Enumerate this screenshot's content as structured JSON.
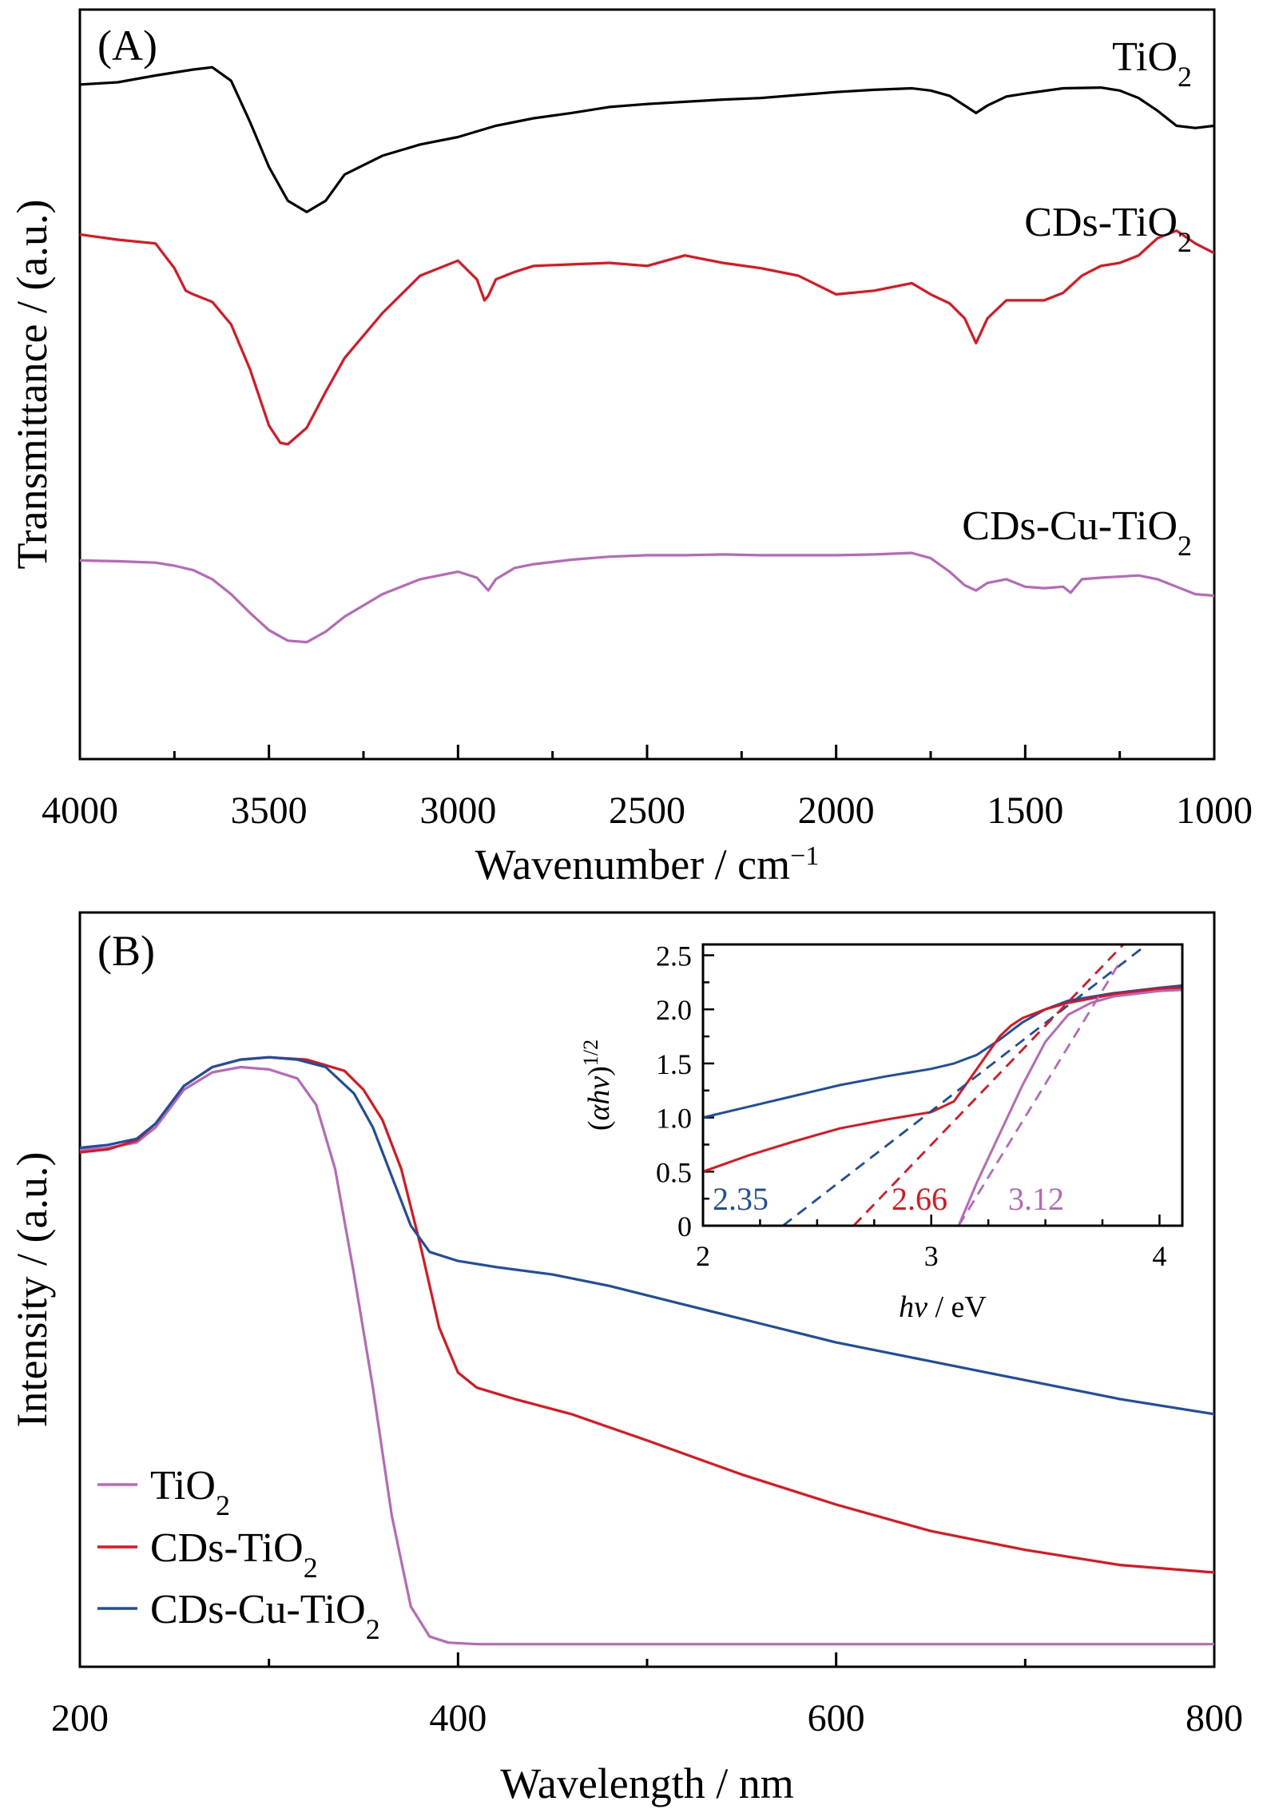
{
  "chart_data": [
    {
      "panel": "(A)",
      "type": "line",
      "xlabel": "Wavenumber / cm",
      "xlabel_sup": "−1",
      "ylabel": "Transmittance / (a.u.)",
      "xlim": [
        4000,
        1000
      ],
      "x_ticks": [
        4000,
        3500,
        3000,
        2500,
        2000,
        1500,
        1000
      ],
      "x_tick_labels": [
        "4000",
        "3500",
        "3000",
        "2500",
        "2000",
        "1500",
        "1000"
      ],
      "ylim": [
        0,
        10
      ],
      "y_ticks_labeled": false,
      "series": [
        {
          "name": "TiO",
          "name_sub": "2",
          "color": "#000000",
          "x": [
            4000,
            3900,
            3800,
            3700,
            3650,
            3600,
            3550,
            3500,
            3450,
            3400,
            3350,
            3300,
            3200,
            3100,
            3000,
            2900,
            2800,
            2700,
            2600,
            2500,
            2400,
            2300,
            2200,
            2100,
            2000,
            1900,
            1800,
            1750,
            1700,
            1660,
            1630,
            1600,
            1550,
            1500,
            1400,
            1300,
            1250,
            1200,
            1150,
            1100,
            1050,
            1000
          ],
          "y": [
            9.0,
            9.03,
            9.12,
            9.2,
            9.23,
            9.05,
            8.5,
            7.9,
            7.45,
            7.3,
            7.45,
            7.8,
            8.05,
            8.2,
            8.3,
            8.45,
            8.55,
            8.62,
            8.7,
            8.74,
            8.77,
            8.8,
            8.82,
            8.86,
            8.9,
            8.93,
            8.95,
            8.92,
            8.85,
            8.72,
            8.62,
            8.72,
            8.84,
            8.88,
            8.95,
            8.96,
            8.92,
            8.82,
            8.65,
            8.45,
            8.42,
            8.45
          ]
        },
        {
          "name": "CDs-TiO",
          "name_sub": "2",
          "color": "#e0141e",
          "x": [
            4000,
            3900,
            3800,
            3750,
            3720,
            3700,
            3650,
            3600,
            3550,
            3500,
            3470,
            3450,
            3400,
            3350,
            3300,
            3200,
            3100,
            3000,
            2950,
            2930,
            2920,
            2900,
            2850,
            2800,
            2700,
            2600,
            2500,
            2400,
            2300,
            2200,
            2100,
            2000,
            1900,
            1800,
            1750,
            1700,
            1660,
            1630,
            1600,
            1550,
            1500,
            1450,
            1400,
            1350,
            1300,
            1250,
            1200,
            1150,
            1100,
            1050,
            1000
          ],
          "y": [
            7.0,
            6.93,
            6.88,
            6.55,
            6.25,
            6.2,
            6.1,
            5.8,
            5.2,
            4.45,
            4.22,
            4.2,
            4.42,
            4.9,
            5.35,
            5.95,
            6.45,
            6.65,
            6.4,
            6.12,
            6.18,
            6.4,
            6.5,
            6.58,
            6.6,
            6.62,
            6.58,
            6.72,
            6.62,
            6.55,
            6.45,
            6.2,
            6.25,
            6.35,
            6.2,
            6.08,
            5.88,
            5.55,
            5.88,
            6.12,
            6.12,
            6.12,
            6.22,
            6.45,
            6.58,
            6.62,
            6.72,
            6.95,
            7.05,
            6.88,
            6.75
          ]
        },
        {
          "name": "CDs-Cu-TiO",
          "name_sub": "2",
          "color": "#b768b9",
          "x": [
            4000,
            3900,
            3800,
            3750,
            3700,
            3650,
            3600,
            3550,
            3500,
            3450,
            3400,
            3350,
            3300,
            3200,
            3100,
            3000,
            2950,
            2920,
            2900,
            2850,
            2800,
            2700,
            2600,
            2500,
            2400,
            2300,
            2200,
            2100,
            2000,
            1900,
            1800,
            1750,
            1700,
            1660,
            1630,
            1600,
            1550,
            1500,
            1450,
            1400,
            1380,
            1350,
            1300,
            1200,
            1150,
            1100,
            1050,
            1000
          ],
          "y": [
            2.65,
            2.64,
            2.62,
            2.58,
            2.52,
            2.4,
            2.2,
            1.95,
            1.72,
            1.58,
            1.56,
            1.7,
            1.9,
            2.2,
            2.4,
            2.5,
            2.42,
            2.25,
            2.4,
            2.55,
            2.6,
            2.66,
            2.7,
            2.72,
            2.72,
            2.73,
            2.72,
            2.72,
            2.72,
            2.73,
            2.75,
            2.68,
            2.5,
            2.32,
            2.25,
            2.35,
            2.4,
            2.3,
            2.28,
            2.3,
            2.22,
            2.4,
            2.42,
            2.45,
            2.4,
            2.3,
            2.2,
            2.18
          ]
        }
      ]
    },
    {
      "panel": "(B)",
      "type": "line",
      "xlabel": "Wavelength / nm",
      "ylabel": "Intensity / (a.u.)",
      "xlim": [
        200,
        800
      ],
      "x_ticks": [
        200,
        400,
        600,
        800
      ],
      "x_tick_labels": [
        "200",
        "400",
        "600",
        "800"
      ],
      "x_minor_ticks": [
        300,
        500,
        700
      ],
      "ylim": [
        0,
        10
      ],
      "y_ticks_labeled": false,
      "legend": "bottom-left",
      "series": [
        {
          "name": "TiO",
          "name_sub": "2",
          "color": "#b768b9",
          "x": [
            200,
            215,
            230,
            240,
            255,
            270,
            285,
            300,
            315,
            325,
            335,
            345,
            355,
            365,
            375,
            385,
            395,
            410,
            450,
            500,
            600,
            700,
            800
          ],
          "y": [
            6.85,
            6.88,
            6.95,
            7.15,
            7.65,
            7.88,
            7.95,
            7.92,
            7.8,
            7.45,
            6.6,
            5.2,
            3.7,
            2.0,
            0.8,
            0.4,
            0.32,
            0.3,
            0.3,
            0.3,
            0.3,
            0.3,
            0.3
          ]
        },
        {
          "name": "CDs-TiO",
          "name_sub": "2",
          "color": "#e0141e",
          "x": [
            200,
            215,
            230,
            240,
            255,
            270,
            285,
            300,
            320,
            340,
            350,
            360,
            370,
            380,
            390,
            400,
            410,
            430,
            460,
            500,
            550,
            600,
            650,
            700,
            750,
            800
          ],
          "y": [
            6.82,
            6.86,
            6.98,
            7.2,
            7.7,
            7.95,
            8.05,
            8.08,
            8.05,
            7.9,
            7.65,
            7.25,
            6.6,
            5.6,
            4.5,
            3.9,
            3.7,
            3.55,
            3.35,
            3.0,
            2.55,
            2.15,
            1.8,
            1.55,
            1.35,
            1.25
          ]
        },
        {
          "name": "CDs-Cu-TiO",
          "name_sub": "2",
          "color": "#1f4ea0",
          "x": [
            200,
            215,
            230,
            240,
            255,
            270,
            285,
            300,
            315,
            330,
            345,
            355,
            365,
            375,
            385,
            400,
            420,
            450,
            480,
            520,
            560,
            600,
            650,
            700,
            750,
            800
          ],
          "y": [
            6.88,
            6.92,
            7.0,
            7.2,
            7.7,
            7.95,
            8.05,
            8.08,
            8.05,
            7.95,
            7.6,
            7.15,
            6.5,
            5.85,
            5.5,
            5.38,
            5.3,
            5.2,
            5.05,
            4.8,
            4.55,
            4.3,
            4.05,
            3.8,
            3.55,
            3.35
          ]
        }
      ],
      "inset": {
        "type": "line",
        "xlabel_italic": "hv",
        "xlabel": " / eV",
        "ylabel_italic": "αhv",
        "ylabel": "()",
        "ylabel_sup": "1/2",
        "xlim": [
          2,
          4.1
        ],
        "ylim": [
          0,
          2.6
        ],
        "x_ticks": [
          2,
          3,
          4
        ],
        "x_tick_labels": [
          "2",
          "3",
          "4"
        ],
        "y_ticks": [
          0,
          0.5,
          1.0,
          1.5,
          2.0,
          2.5
        ],
        "y_tick_labels": [
          "0",
          "0.5",
          "1.0",
          "1.5",
          "2.0",
          "2.5"
        ],
        "series": [
          {
            "color": "#1f4ea0",
            "x": [
              2.0,
              2.2,
              2.4,
              2.6,
              2.8,
              3.0,
              3.1,
              3.2,
              3.3,
              3.4,
              3.5,
              3.6,
              3.8,
              4.0,
              4.1
            ],
            "y": [
              1.0,
              1.1,
              1.2,
              1.3,
              1.38,
              1.45,
              1.5,
              1.58,
              1.72,
              1.88,
              2.0,
              2.08,
              2.15,
              2.2,
              2.22
            ]
          },
          {
            "color": "#e0141e",
            "x": [
              2.0,
              2.2,
              2.4,
              2.6,
              2.8,
              3.0,
              3.1,
              3.15,
              3.2,
              3.25,
              3.3,
              3.35,
              3.4,
              3.5,
              3.6,
              3.8,
              4.0,
              4.1
            ],
            "y": [
              0.5,
              0.65,
              0.78,
              0.9,
              0.98,
              1.05,
              1.15,
              1.3,
              1.45,
              1.6,
              1.75,
              1.85,
              1.92,
              2.0,
              2.06,
              2.14,
              2.19,
              2.2
            ]
          },
          {
            "color": "#b768b9",
            "x": [
              2.0,
              3.1,
              3.12,
              3.2,
              3.3,
              3.4,
              3.5,
              3.6,
              3.7,
              3.8,
              4.0,
              4.1
            ],
            "y": [
              0.0,
              0.0,
              0.0,
              0.4,
              0.85,
              1.3,
              1.7,
              1.95,
              2.06,
              2.12,
              2.17,
              2.18
            ]
          }
        ],
        "fits": [
          {
            "color": "#1f4ea0",
            "x0": 2.35,
            "x1": 3.95
          },
          {
            "color": "#e0141e",
            "x0": 2.66,
            "x1": 3.85
          },
          {
            "color": "#b768b9",
            "x0": 3.12,
            "x1": 3.83
          }
        ],
        "annotations": [
          {
            "text": "2.35",
            "color": "#1f4ea0"
          },
          {
            "text": "2.66",
            "color": "#e0141e"
          },
          {
            "text": "3.12",
            "color": "#b768b9"
          }
        ]
      }
    }
  ]
}
